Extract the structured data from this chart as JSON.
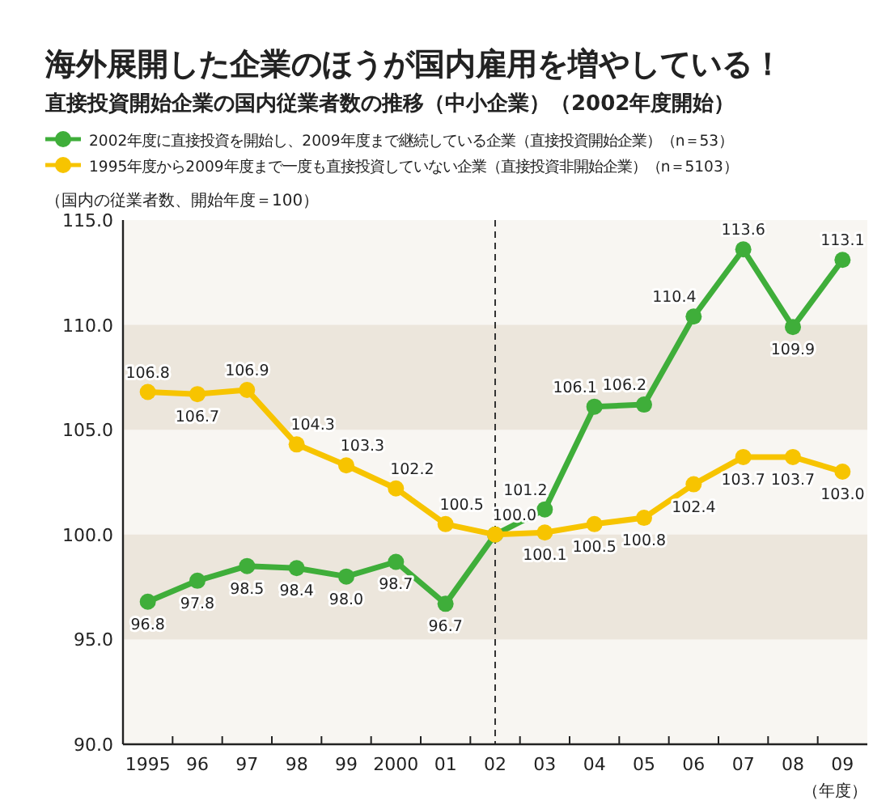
{
  "chart_data": {
    "type": "line",
    "title": "海外展開した企業のほうが国内雇用を増やしている！",
    "subtitle": "直接投資開始企業の国内従業者数の推移（中小企業）（2002年度開始）",
    "ylabel": "（国内の従業者数、開始年度＝100）",
    "xlabel": "（年度）",
    "categories": [
      "1995",
      "96",
      "97",
      "98",
      "99",
      "2000",
      "01",
      "02",
      "03",
      "04",
      "05",
      "06",
      "07",
      "08",
      "09"
    ],
    "series": [
      {
        "name": "2002年度に直接投資を開始し、2009年度まで継続している企業（直接投資開始企業）（n＝53）",
        "color": "#3fae3a",
        "values": [
          96.8,
          97.8,
          98.5,
          98.4,
          98.0,
          98.7,
          96.7,
          100.0,
          101.2,
          106.1,
          106.2,
          110.4,
          113.6,
          109.9,
          113.1
        ],
        "value_labels": [
          "96.8",
          "97.8",
          "98.5",
          "98.4",
          "98.0",
          "98.7",
          "96.7",
          "100.0",
          "101.2",
          "106.1",
          "106.2",
          "110.4",
          "113.6",
          "109.9",
          "113.1"
        ]
      },
      {
        "name": "1995年度から2009年度まで一度も直接投資していない企業（直接投資非開始企業）（n＝5103）",
        "color": "#f7c400",
        "values": [
          106.8,
          106.7,
          106.9,
          104.3,
          103.3,
          102.2,
          100.5,
          100.0,
          100.1,
          100.5,
          100.8,
          102.4,
          103.7,
          103.7,
          103.0
        ],
        "value_labels": [
          "106.8",
          "106.7",
          "106.9",
          "104.3",
          "103.3",
          "102.2",
          "100.5",
          null,
          "100.1",
          "100.5",
          "100.8",
          "102.4",
          "103.7",
          "103.7",
          "103.0"
        ]
      }
    ],
    "ylim": [
      90,
      115
    ],
    "yticks": [
      {
        "value": 90,
        "label": "90.0"
      },
      {
        "value": 95,
        "label": "95.0"
      },
      {
        "value": 100,
        "label": "100.0"
      },
      {
        "value": 105,
        "label": "105.0"
      },
      {
        "value": 110,
        "label": "110.0"
      },
      {
        "value": 115,
        "label": "115.0"
      }
    ],
    "bands": [
      {
        "axis": "y",
        "from": 95,
        "to": 100,
        "color": "#ece6dc"
      },
      {
        "axis": "y",
        "from": 105,
        "to": 110,
        "color": "#ece6dc"
      }
    ],
    "ref_lines": [
      {
        "axis": "x",
        "value": "02",
        "line_style": "dashed"
      }
    ],
    "legend": "top left",
    "marker": "circle",
    "line_style": "solid",
    "grid": false
  }
}
